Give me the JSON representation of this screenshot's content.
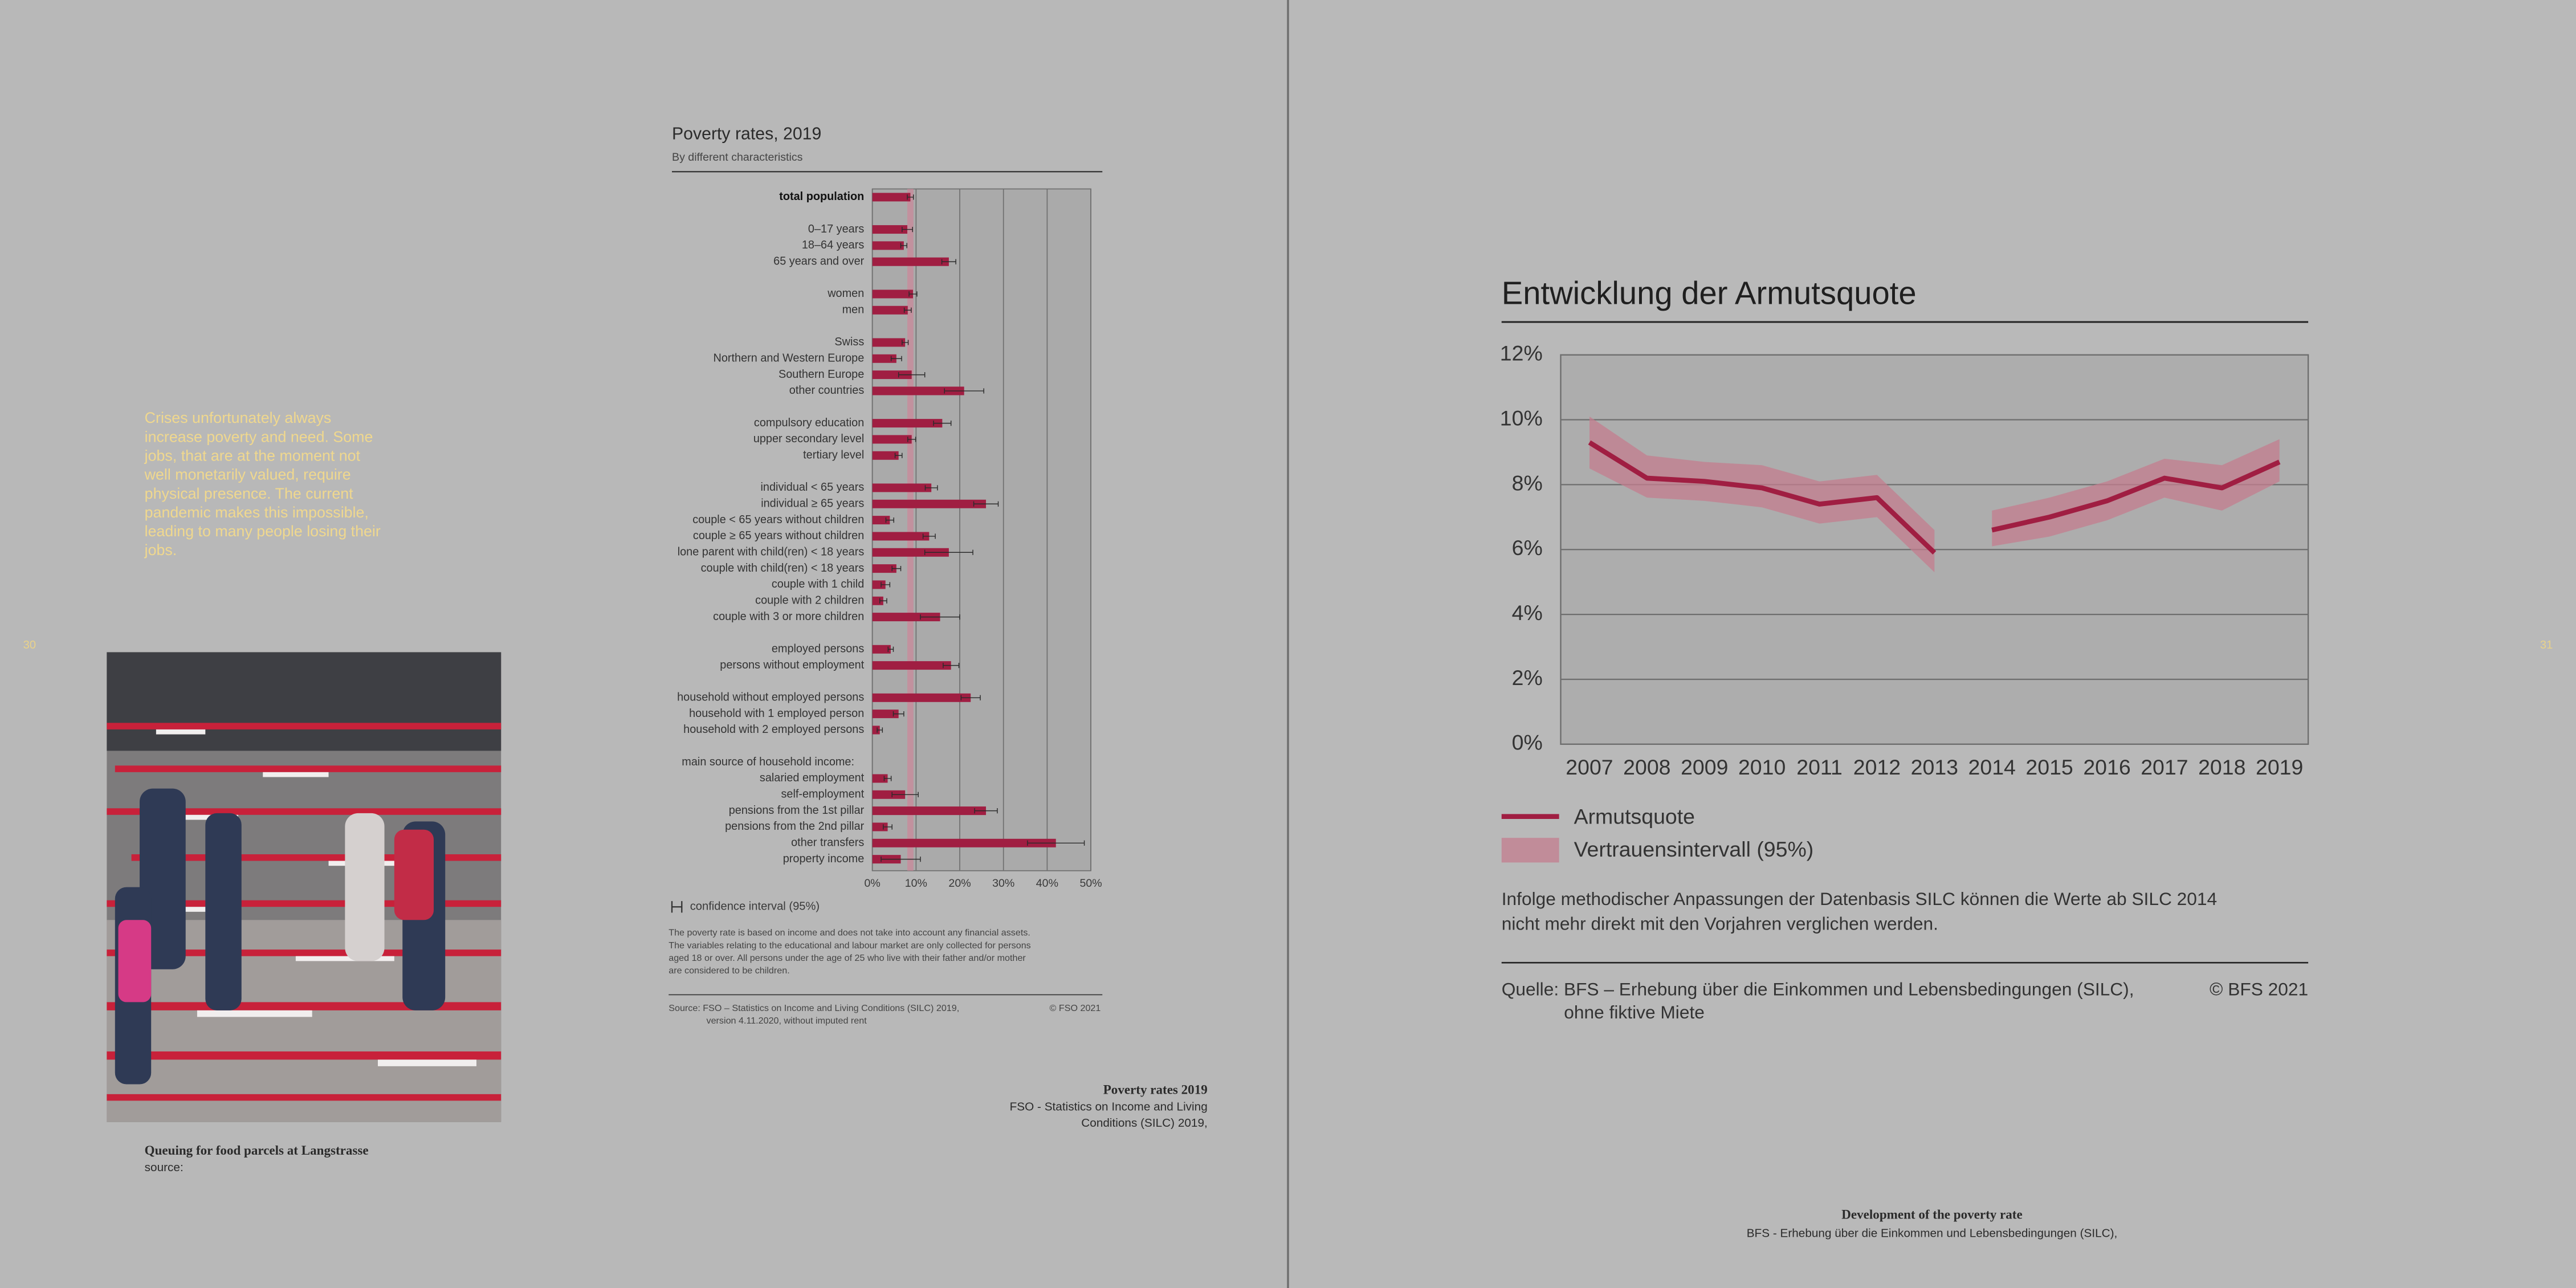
{
  "page_numbers": [
    "30",
    "31"
  ],
  "intro_text": [
    "Crises unfortunately always",
    "increase poverty and need. Some",
    "jobs, that are at the moment not",
    "well monetarily valued, require",
    "physical presence. The current",
    "pandemic makes this impossible,",
    "leading to many people losing their",
    "jobs."
  ],
  "photo_caption": {
    "title": "Queuing for food parcels at Langstrasse",
    "source": "source:"
  },
  "chart_data": [
    {
      "type": "bar",
      "orientation": "horizontal",
      "title": "Poverty rates, 2019",
      "subtitle": "By different characteristics",
      "categories": [
        "total population",
        null,
        "0–17 years",
        "18–64 years",
        "65 years and over",
        null,
        "women",
        "men",
        null,
        "Swiss",
        "Northern and Western Europe",
        "Southern Europe",
        "other countries",
        null,
        "compulsory education",
        "upper secondary level",
        "tertiary level",
        null,
        "individual < 65 years",
        "individual  ≥ 65 years",
        "couple < 65 years without children",
        "couple ≥ 65 years without children",
        "lone parent with child(ren) < 18 years",
        "couple with child(ren) < 18 years",
        "couple with 1 child",
        "couple with 2 children",
        "couple with 3 or more children",
        null,
        "employed persons",
        "persons without employment",
        null,
        "household without employed persons",
        "household with 1 employed person",
        "household with 2 employed persons",
        null,
        "main source of household income:",
        "salaried employment",
        "self-employment",
        "pensions from the 1st pillar",
        "pensions from the 2nd pillar",
        "other transfers",
        "property income"
      ],
      "values": [
        8.7,
        null,
        8.0,
        7.2,
        17.5,
        null,
        9.3,
        8.1,
        null,
        7.5,
        5.5,
        9.0,
        21.0,
        null,
        16.0,
        9.0,
        6.0,
        null,
        13.5,
        26.0,
        4.0,
        13.0,
        17.5,
        5.5,
        3.0,
        2.5,
        15.5,
        null,
        4.2,
        18.0,
        null,
        22.5,
        6.0,
        1.7,
        null,
        null,
        3.5,
        7.5,
        26.0,
        3.5,
        42.0,
        6.5
      ],
      "errors": [
        0.7,
        null,
        1.2,
        0.7,
        1.6,
        null,
        0.9,
        0.8,
        null,
        0.7,
        1.2,
        3.0,
        4.5,
        null,
        2.0,
        0.9,
        0.8,
        null,
        1.4,
        2.8,
        0.9,
        1.4,
        5.5,
        1.0,
        1.0,
        0.8,
        4.5,
        null,
        0.6,
        1.8,
        null,
        2.2,
        1.2,
        0.6,
        null,
        null,
        0.8,
        3.0,
        2.6,
        1.0,
        6.5,
        4.5
      ],
      "color": "#a01e42",
      "band_color": "#c9889a",
      "error_color": "#2a2a2a",
      "xlim": [
        0,
        50
      ],
      "xticks": [
        {
          "value": 0,
          "label": "0%"
        },
        {
          "value": 10,
          "label": "10%"
        },
        {
          "value": 20,
          "label": "20%"
        },
        {
          "value": 30,
          "label": "30%"
        },
        {
          "value": 40,
          "label": "40%"
        },
        {
          "value": 50,
          "label": "50%"
        }
      ],
      "grid": true,
      "legend_label": "confidence interval (95%)",
      "notes": [
        "The poverty rate is based on income and does not take into account any financial assets.",
        "The variables relating to the educational and labour market are only collected for persons",
        "aged 18 or over. All persons under the age of 25 who live with their father and/or mother",
        "are considered to be children."
      ],
      "source": [
        "Source: FSO – Statistics on Income and Living Conditions (SILC) 2019,",
        "version 4.11.2020, without imputed rent"
      ],
      "copyright": "© FSO 2021"
    },
    {
      "type": "line",
      "title": "Entwicklung der Armutsquote",
      "x": [
        2007,
        2008,
        2009,
        2010,
        2011,
        2012,
        2013,
        null,
        2014,
        2015,
        2016,
        2017,
        2018,
        2019
      ],
      "series": [
        {
          "name": "Armutsquote",
          "color": "#a01e42",
          "values": [
            9.3,
            8.2,
            8.1,
            7.9,
            7.4,
            7.6,
            5.9,
            null,
            6.6,
            7.0,
            7.5,
            8.2,
            7.9,
            8.7
          ]
        },
        {
          "name": "Vertrauensintervall (95%)",
          "color": "#c47d8f",
          "lower": [
            8.5,
            7.6,
            7.5,
            7.3,
            6.8,
            7.0,
            5.3,
            null,
            6.1,
            6.4,
            6.9,
            7.6,
            7.2,
            8.1
          ],
          "upper": [
            10.1,
            8.9,
            8.7,
            8.6,
            8.1,
            8.3,
            6.6,
            null,
            7.2,
            7.6,
            8.1,
            8.8,
            8.6,
            9.4
          ]
        }
      ],
      "xlim": [
        2006.5,
        2019.5
      ],
      "xticks": [
        2007,
        2008,
        2009,
        2010,
        2011,
        2012,
        2013,
        2014,
        2015,
        2016,
        2017,
        2018,
        2019
      ],
      "ylim": [
        0,
        12
      ],
      "yticks": [
        {
          "value": 0,
          "label": "0%"
        },
        {
          "value": 2,
          "label": "2%"
        },
        {
          "value": 4,
          "label": "4%"
        },
        {
          "value": 6,
          "label": "6%"
        },
        {
          "value": 8,
          "label": "8%"
        },
        {
          "value": 10,
          "label": "10%"
        },
        {
          "value": 12,
          "label": "12%"
        }
      ],
      "grid": true,
      "note": [
        "Infolge methodischer Anpassungen der Datenbasis SILC können die Werte ab SILC 2014",
        "nicht mehr direkt mit den Vorjahren verglichen werden."
      ],
      "source": [
        "Quelle: BFS – Erhebung über die Einkommen und Lebensbedingungen (SILC),",
        "ohne fiktive Miete"
      ],
      "copyright": "© BFS 2021"
    }
  ],
  "captions": [
    {
      "title": "Poverty rates 2019",
      "lines": [
        "FSO - Statistics on Income and Living",
        "Conditions (SILC) 2019,"
      ]
    },
    {
      "title": "Development of the poverty rate",
      "lines": [
        "BFS - Erhebung über die Einkommen und Lebensbedingungen (SILC),"
      ]
    }
  ]
}
